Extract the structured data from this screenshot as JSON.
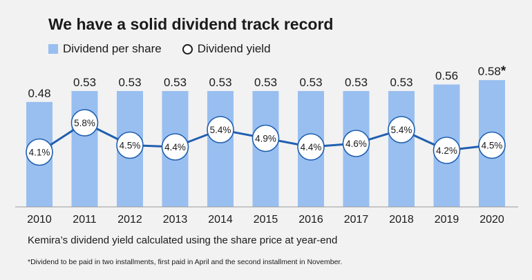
{
  "chart_data": {
    "type": "bar",
    "title": "We have a solid dividend track record",
    "categories": [
      "2010",
      "2011",
      "2012",
      "2013",
      "2014",
      "2015",
      "2016",
      "2017",
      "2018",
      "2019",
      "2020"
    ],
    "series": [
      {
        "name": "Dividend per share",
        "type": "bar",
        "values": [
          0.48,
          0.53,
          0.53,
          0.53,
          0.53,
          0.53,
          0.53,
          0.53,
          0.53,
          0.56,
          0.58
        ],
        "labels": [
          "0.48",
          "0.53",
          "0.53",
          "0.53",
          "0.53",
          "0.53",
          "0.53",
          "0.53",
          "0.53",
          "0.56",
          "0.58*"
        ],
        "color": "#99bff0"
      },
      {
        "name": "Dividend yield",
        "type": "line",
        "values": [
          4.1,
          5.8,
          4.5,
          4.4,
          5.4,
          4.9,
          4.4,
          4.6,
          5.4,
          4.2,
          4.5
        ],
        "labels": [
          "4.1%",
          "5.8%",
          "4.5%",
          "4.4%",
          "5.4%",
          "4.9%",
          "4.4%",
          "4.6%",
          "5.4%",
          "4.2%",
          "4.5%"
        ],
        "color": "#1f5fb0"
      }
    ],
    "ylim": [
      0,
      0.6
    ],
    "legend_position": "top-left",
    "grid": false,
    "caption": "Kemira’s dividend yield calculated using the share price at year-end",
    "footnote": "*Dividend to be paid in two installments, first paid in April and the second installment in November."
  }
}
